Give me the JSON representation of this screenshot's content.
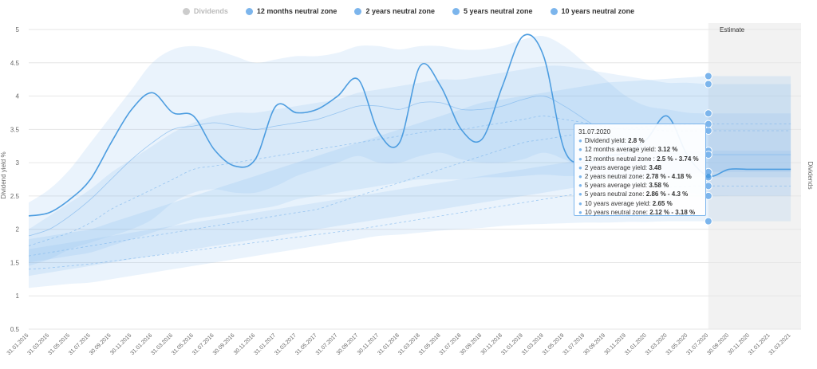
{
  "legend": [
    {
      "label": "Dividends",
      "color": "#cccccc",
      "active": false
    },
    {
      "label": "12 months neutral zone",
      "color": "#7cb5ec",
      "active": true
    },
    {
      "label": "2 years neutral zone",
      "color": "#7cb5ec",
      "active": true
    },
    {
      "label": "5 years neutral zone",
      "color": "#7cb5ec",
      "active": true
    },
    {
      "label": "10 years neutral zone",
      "color": "#7cb5ec",
      "active": true
    }
  ],
  "tooltip": {
    "date": "31.07.2020",
    "rows": [
      {
        "label": "Dividend yield: ",
        "value": "2.8 %",
        "extra": ""
      },
      {
        "label": "12 months average yield: ",
        "value": "3.12 %",
        "extra": ""
      },
      {
        "label": "12 months neutral zone : ",
        "value": "2.5 %",
        "extra": " - 3.74 %"
      },
      {
        "label": "2 years average yield: ",
        "value": "3.48",
        "extra": ""
      },
      {
        "label": "2 years neutral zone: ",
        "value": "2.78 %",
        "extra": " - 4.18 %"
      },
      {
        "label": "5 years average yield: ",
        "value": "3.58 %",
        "extra": ""
      },
      {
        "label": "5 years neutral zone: ",
        "value": "2.86 %",
        "extra": " - 4.3 %"
      },
      {
        "label": "10 years average yield: ",
        "value": "2.65 %",
        "extra": ""
      },
      {
        "label": "10 years neutral zone: ",
        "value": "2.12 %",
        "extra": " - 3.18 %"
      }
    ]
  },
  "chart_data": {
    "type": "line",
    "ylabel": "Dividend yield %",
    "ylabel_right": "Dividends",
    "estimate_label": "Estimate",
    "estimate_start": "31.07.2020",
    "ylim": [
      0.5,
      5
    ],
    "yticks": [
      0.5,
      1,
      1.5,
      2,
      2.5,
      3,
      3.5,
      4,
      4.5,
      5
    ],
    "categories": [
      "31.01.2015",
      "31.03.2015",
      "31.05.2015",
      "31.07.2015",
      "30.09.2015",
      "30.11.2015",
      "31.01.2016",
      "31.03.2016",
      "31.05.2016",
      "31.07.2016",
      "30.09.2016",
      "30.11.2016",
      "31.01.2017",
      "31.03.2017",
      "31.05.2017",
      "31.07.2017",
      "30.09.2017",
      "30.11.2017",
      "31.01.2018",
      "31.03.2018",
      "31.05.2018",
      "31.07.2018",
      "30.09.2018",
      "30.11.2018",
      "31.01.2019",
      "31.03.2019",
      "31.05.2019",
      "31.07.2019",
      "30.09.2019",
      "30.11.2019",
      "31.01.2020",
      "31.03.2020",
      "31.05.2020",
      "31.07.2020",
      "30.09.2020",
      "30.11.2020",
      "31.01.2021",
      "31.03.2021"
    ],
    "dividend_yield": [
      2.2,
      2.25,
      2.45,
      2.75,
      3.3,
      3.8,
      4.05,
      3.75,
      3.7,
      3.2,
      2.95,
      3.05,
      3.85,
      3.75,
      3.8,
      4.0,
      4.25,
      3.45,
      3.3,
      4.45,
      4.15,
      3.5,
      3.35,
      4.15,
      4.9,
      4.6,
      3.2,
      3.0,
      3.1,
      3.15,
      3.35,
      3.7,
      3.1,
      2.8,
      2.9,
      2.9,
      2.9,
      2.9
    ],
    "bands": [
      {
        "name": "12 months neutral zone",
        "opacity": 0.16,
        "lower": [
          1.45,
          1.55,
          1.7,
          1.8,
          1.9,
          2.0,
          2.15,
          2.4,
          2.55,
          2.6,
          2.55,
          2.55,
          2.65,
          2.8,
          2.9,
          3.0,
          3.1,
          3.0,
          3.0,
          3.1,
          3.15,
          3.05,
          3.0,
          3.0,
          3.05,
          3.15,
          3.05,
          2.9,
          2.8,
          2.7,
          2.65,
          2.6,
          2.55,
          2.5,
          2.5,
          2.5,
          2.5,
          2.5
        ],
        "upper": [
          2.4,
          2.6,
          2.9,
          3.3,
          3.7,
          4.1,
          4.5,
          4.7,
          4.75,
          4.7,
          4.6,
          4.5,
          4.55,
          4.6,
          4.6,
          4.65,
          4.75,
          4.75,
          4.7,
          4.75,
          4.75,
          4.7,
          4.7,
          4.75,
          4.85,
          4.9,
          4.75,
          4.5,
          4.25,
          4.0,
          3.85,
          3.8,
          3.75,
          3.74,
          3.74,
          3.74,
          3.74,
          3.74
        ]
      },
      {
        "name": "2 years neutral zone",
        "opacity": 0.16,
        "lower": [
          1.5,
          1.55,
          1.6,
          1.65,
          1.75,
          1.85,
          1.95,
          2.05,
          2.15,
          2.2,
          2.25,
          2.3,
          2.35,
          2.45,
          2.5,
          2.55,
          2.6,
          2.65,
          2.7,
          2.75,
          2.75,
          2.75,
          2.78,
          2.78,
          2.8,
          2.82,
          2.8,
          2.8,
          2.78,
          2.78,
          2.78,
          2.78,
          2.78,
          2.78,
          2.78,
          2.78,
          2.78,
          2.78
        ],
        "upper": [
          2.0,
          2.2,
          2.4,
          2.6,
          2.85,
          3.05,
          3.25,
          3.45,
          3.6,
          3.7,
          3.75,
          3.75,
          3.8,
          3.85,
          3.9,
          3.95,
          4.05,
          4.1,
          4.15,
          4.2,
          4.25,
          4.25,
          4.3,
          4.35,
          4.4,
          4.45,
          4.45,
          4.4,
          4.35,
          4.3,
          4.25,
          4.2,
          4.2,
          4.18,
          4.18,
          4.18,
          4.18,
          4.18
        ]
      },
      {
        "name": "5 years neutral zone",
        "opacity": 0.18,
        "lower": [
          1.3,
          1.35,
          1.4,
          1.45,
          1.5,
          1.55,
          1.6,
          1.65,
          1.7,
          1.75,
          1.8,
          1.85,
          1.9,
          1.95,
          2.0,
          2.05,
          2.1,
          2.15,
          2.2,
          2.25,
          2.3,
          2.35,
          2.4,
          2.45,
          2.5,
          2.55,
          2.6,
          2.65,
          2.7,
          2.75,
          2.78,
          2.8,
          2.83,
          2.86,
          2.86,
          2.86,
          2.86,
          2.86
        ],
        "upper": [
          1.85,
          1.9,
          1.95,
          2.0,
          2.1,
          2.2,
          2.3,
          2.4,
          2.5,
          2.6,
          2.7,
          2.8,
          2.9,
          3.0,
          3.1,
          3.2,
          3.3,
          3.4,
          3.5,
          3.6,
          3.7,
          3.8,
          3.9,
          3.95,
          4.0,
          4.05,
          4.1,
          4.15,
          4.2,
          4.22,
          4.24,
          4.26,
          4.28,
          4.3,
          4.3,
          4.3,
          4.3,
          4.3
        ]
      },
      {
        "name": "10 years neutral zone",
        "opacity": 0.16,
        "lower": [
          1.12,
          1.15,
          1.18,
          1.2,
          1.25,
          1.3,
          1.35,
          1.4,
          1.45,
          1.5,
          1.55,
          1.6,
          1.65,
          1.7,
          1.75,
          1.8,
          1.85,
          1.9,
          1.92,
          1.95,
          1.98,
          2.0,
          2.02,
          2.05,
          2.07,
          2.08,
          2.09,
          2.1,
          2.1,
          2.11,
          2.11,
          2.12,
          2.12,
          2.12,
          2.12,
          2.12,
          2.12,
          2.12
        ],
        "upper": [
          1.7,
          1.75,
          1.8,
          1.85,
          1.9,
          1.95,
          2.0,
          2.05,
          2.1,
          2.15,
          2.2,
          2.25,
          2.3,
          2.35,
          2.4,
          2.45,
          2.5,
          2.55,
          2.6,
          2.65,
          2.7,
          2.75,
          2.8,
          2.85,
          2.9,
          2.95,
          3.0,
          3.05,
          3.1,
          3.12,
          3.14,
          3.16,
          3.17,
          3.18,
          3.18,
          3.18,
          3.18,
          3.18
        ]
      }
    ],
    "averages": [
      {
        "name": "12 months average yield",
        "values": [
          1.9,
          2.0,
          2.2,
          2.45,
          2.75,
          3.05,
          3.3,
          3.5,
          3.55,
          3.6,
          3.55,
          3.5,
          3.55,
          3.6,
          3.65,
          3.75,
          3.85,
          3.85,
          3.8,
          3.9,
          3.9,
          3.8,
          3.8,
          3.85,
          3.95,
          4.0,
          3.85,
          3.65,
          3.45,
          3.3,
          3.2,
          3.15,
          3.12,
          3.12,
          3.12,
          3.12,
          3.12,
          3.12
        ]
      },
      {
        "name": "2 years average yield",
        "values": [
          1.75,
          1.85,
          1.95,
          2.1,
          2.3,
          2.45,
          2.6,
          2.75,
          2.9,
          2.95,
          3.0,
          3.05,
          3.1,
          3.15,
          3.2,
          3.25,
          3.3,
          3.35,
          3.4,
          3.45,
          3.5,
          3.5,
          3.55,
          3.6,
          3.65,
          3.7,
          3.65,
          3.6,
          3.55,
          3.5,
          3.5,
          3.48,
          3.48,
          3.48,
          3.48,
          3.48,
          3.48,
          3.48
        ]
      },
      {
        "name": "5 years average yield",
        "values": [
          1.6,
          1.65,
          1.7,
          1.75,
          1.8,
          1.85,
          1.9,
          1.95,
          2.0,
          2.05,
          2.1,
          2.15,
          2.2,
          2.25,
          2.3,
          2.4,
          2.5,
          2.6,
          2.7,
          2.8,
          2.9,
          3.0,
          3.1,
          3.2,
          3.3,
          3.35,
          3.4,
          3.45,
          3.5,
          3.52,
          3.54,
          3.56,
          3.57,
          3.58,
          3.58,
          3.58,
          3.58,
          3.58
        ]
      },
      {
        "name": "10 years average yield",
        "values": [
          1.4,
          1.42,
          1.45,
          1.48,
          1.52,
          1.56,
          1.6,
          1.64,
          1.68,
          1.72,
          1.76,
          1.8,
          1.84,
          1.88,
          1.92,
          1.96,
          2.0,
          2.05,
          2.1,
          2.15,
          2.2,
          2.25,
          2.3,
          2.35,
          2.4,
          2.45,
          2.5,
          2.55,
          2.58,
          2.6,
          2.62,
          2.63,
          2.64,
          2.65,
          2.65,
          2.65,
          2.65,
          2.65
        ]
      }
    ]
  }
}
